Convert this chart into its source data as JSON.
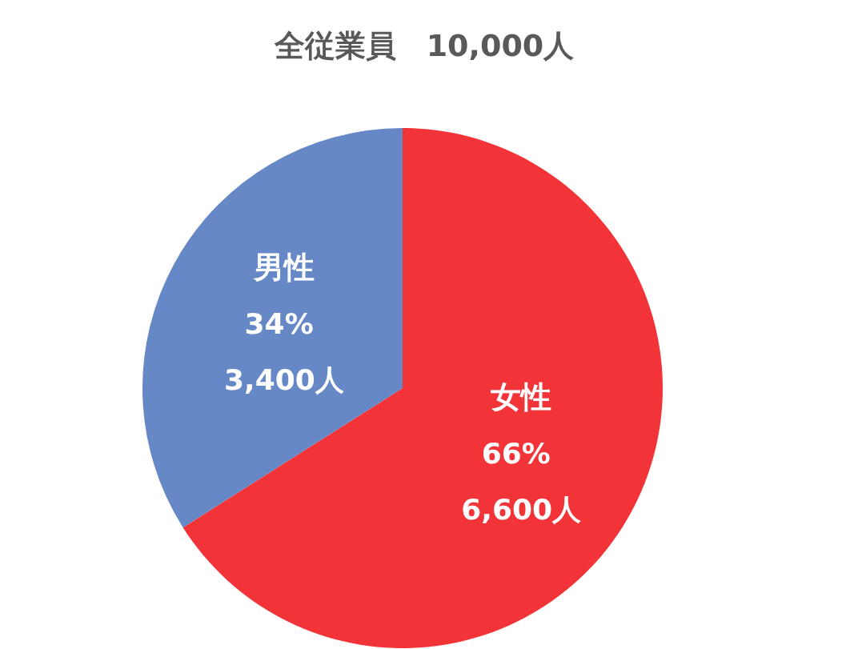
{
  "chart_data": {
    "type": "pie",
    "title": "全従業員　10,000人",
    "categories": [
      "女性",
      "男性"
    ],
    "values": [
      6600,
      3400
    ],
    "colors": [
      "#f23438",
      "#6688c6"
    ],
    "value_labels": [
      "66% 6,600人",
      "34% 3,400人"
    ]
  }
}
